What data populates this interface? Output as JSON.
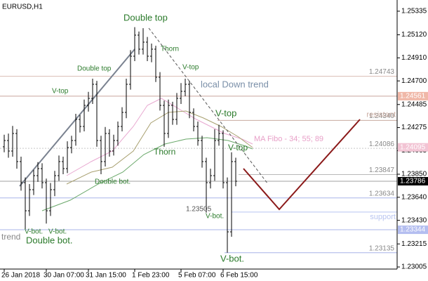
{
  "chart_data": {
    "type": "ohlc",
    "title": "EURUSD,H1",
    "open": [
      1.241,
      1.24157,
      1.24061,
      1.24221,
      1.23965,
      1.23773,
      1.23517,
      1.23709,
      1.23837,
      1.23901,
      1.23773,
      1.23517,
      1.23709,
      1.23837,
      1.23965,
      1.23901,
      1.24093,
      1.24157,
      1.24349,
      1.24285,
      1.24477,
      1.24541,
      1.24669,
      1.24157,
      1.23965,
      1.24221,
      1.24061,
      1.24157,
      1.24285,
      1.24413,
      1.24669,
      1.24925,
      1.25117,
      1.24989,
      1.25053,
      1.24925,
      1.24989,
      1.24733,
      1.24477,
      1.24221,
      1.24477,
      1.24349,
      1.24541,
      1.24605,
      1.24669,
      1.24413,
      1.24285,
      1.24157,
      1.23965,
      1.23773,
      1.23837,
      1.24157,
      1.24221,
      1.23773,
      1.23325,
      1.23965
    ],
    "high": [
      1.2421,
      1.2422,
      1.2429,
      1.2426,
      1.2401,
      1.2382,
      1.2376,
      1.2389,
      1.2396,
      1.2395,
      1.2381,
      1.2377,
      1.2388,
      1.2402,
      1.2401,
      1.2415,
      1.242,
      1.244,
      1.2439,
      1.2453,
      1.246,
      1.2472,
      1.247,
      1.242,
      1.2428,
      1.2426,
      1.2421,
      1.2433,
      1.2446,
      1.2472,
      1.2498,
      1.2519,
      1.2515,
      1.2518,
      1.251,
      1.2504,
      1.2502,
      1.2478,
      1.2452,
      1.2453,
      1.2451,
      1.2459,
      1.2468,
      1.2472,
      1.247,
      1.2445,
      1.2433,
      1.242,
      1.24,
      1.239,
      1.2426,
      1.243,
      1.2425,
      1.2382,
      1.2405,
      1.24
    ],
    "low": [
      1.2405,
      1.24,
      1.2401,
      1.239,
      1.237,
      1.2335,
      1.2347,
      1.2366,
      1.2378,
      1.2372,
      1.234,
      1.2347,
      1.2365,
      1.2379,
      1.2385,
      1.2386,
      1.2404,
      1.2411,
      1.2423,
      1.2424,
      1.2442,
      1.2449,
      1.241,
      1.2385,
      1.2392,
      1.2401,
      1.2402,
      1.2411,
      1.2424,
      1.2436,
      1.2462,
      1.2488,
      1.2494,
      1.2494,
      1.2488,
      1.2487,
      1.2469,
      1.2443,
      1.241,
      1.2418,
      1.243,
      1.243,
      1.2449,
      1.2456,
      1.2436,
      1.2424,
      1.2411,
      1.2391,
      1.235,
      1.2372,
      1.2379,
      1.2411,
      1.2372,
      1.23135,
      1.2328,
      1.2374
    ],
    "close": [
      1.24157,
      1.24061,
      1.24221,
      1.23965,
      1.23773,
      1.23517,
      1.23709,
      1.23837,
      1.23901,
      1.23773,
      1.23517,
      1.23709,
      1.23837,
      1.23965,
      1.23901,
      1.24093,
      1.24157,
      1.24349,
      1.24285,
      1.24477,
      1.24541,
      1.24669,
      1.24157,
      1.23965,
      1.24221,
      1.24061,
      1.24157,
      1.24285,
      1.24413,
      1.24669,
      1.24925,
      1.25117,
      1.24989,
      1.25053,
      1.24925,
      1.24989,
      1.24733,
      1.24477,
      1.24221,
      1.24477,
      1.24349,
      1.24541,
      1.24605,
      1.24669,
      1.24413,
      1.24285,
      1.24157,
      1.23965,
      1.23773,
      1.23837,
      1.24157,
      1.24221,
      1.23773,
      1.23325,
      1.23965,
      1.23786
    ],
    "bar_color": "#000000",
    "x_labels": [
      {
        "index": 0,
        "label": "26 Jan 2018"
      },
      {
        "index": 10,
        "label": "30 Jan 07:00"
      },
      {
        "index": 20,
        "label": "31 Jan 15:00"
      },
      {
        "index": 31,
        "label": "1 Feb 23:00"
      },
      {
        "index": 42,
        "label": "5 Feb 07:00"
      },
      {
        "index": 52,
        "label": "6 Feb 15:00"
      }
    ],
    "ylim": [
      1.22986,
      1.25437
    ],
    "yticks": [
      1.25335,
      {
        "value": 1.2512,
        "label": "1.25120"
      },
      {
        "value": 1.2491,
        "label": "1.24910"
      },
      {
        "value": 1.247,
        "label": "1.24700"
      },
      1.24485,
      1.24275,
      1.24065,
      {
        "value": 1.2385,
        "label": "1.23850"
      },
      {
        "value": 1.2364,
        "label": "1.23640"
      },
      {
        "value": 1.2343,
        "label": "1.23430"
      },
      1.23215,
      1.23005
    ],
    "levels": [
      {
        "value": 1.24743,
        "label": "1.24743",
        "color": "#dcc0b8"
      },
      {
        "value": 1.24561,
        "color": "#c9a59c"
      },
      {
        "value": 1.2434,
        "label": "1.24340",
        "name": "resistant",
        "color": "#c8aa9f"
      },
      {
        "value": 1.24086,
        "label": "1.24086",
        "color": "#c8c8c8"
      },
      {
        "value": 1.23847,
        "label": "1.23847",
        "color": "#b8b8b8"
      },
      {
        "value": 1.23786,
        "color": "#a0a0a0"
      },
      {
        "value": 1.23634,
        "label": "1.23634",
        "color": "#a8b4e8"
      },
      {
        "value": 1.23505,
        "name": "support",
        "color": "#b8c4f0"
      },
      {
        "value": 1.23344,
        "color": "#a8b4e8"
      },
      {
        "value": 1.23135,
        "label": "1.23135",
        "color": "#a8b4e8"
      }
    ],
    "price_tags": [
      {
        "value": 1.24561,
        "label": "1.24561",
        "color": "#f0b8a8"
      },
      {
        "value": 1.24095,
        "label": "1.24095",
        "color": "#f2c4d4"
      },
      {
        "value": 1.23786,
        "label": "1.23786",
        "color": "#000000"
      },
      {
        "value": 1.23344,
        "label": "1.23344",
        "color": "#b4bef0"
      }
    ],
    "annotations": [
      {
        "text": "Double top",
        "color": "#2a7a2a"
      },
      {
        "text": "Thorn",
        "color": "#2a7a2a"
      },
      {
        "text": "Double top",
        "color": "#2a7a2a"
      },
      {
        "text": "V-top",
        "color": "#2a7a2a"
      },
      {
        "text": "V-top",
        "color": "#2a7a2a"
      },
      {
        "text": "local Down trend",
        "color": "#7a8fa8"
      },
      {
        "text": "V-top",
        "color": "#2a7a2a"
      },
      {
        "text": "MA Fibo - 34; 55; 89",
        "color": "#e8a0c8"
      },
      {
        "text": "V-top",
        "color": "#2a7a2a"
      },
      {
        "text": "Thorn",
        "color": "#2a7a2a"
      },
      {
        "text": "Double bot.",
        "color": "#2a7a2a"
      },
      {
        "text": "1.23505",
        "color": "#555555"
      },
      {
        "text": "V-bot.",
        "color": "#2a7a2a"
      },
      {
        "text": "V-bot.",
        "color": "#2a7a2a"
      },
      {
        "text": "V-bot.",
        "color": "#2a7a2a"
      },
      {
        "text": "trend",
        "color": "#888888"
      },
      {
        "text": "Double bot.",
        "color": "#2a7a2a"
      },
      {
        "text": "V-bot.",
        "color": "#2a7a2a"
      }
    ]
  }
}
